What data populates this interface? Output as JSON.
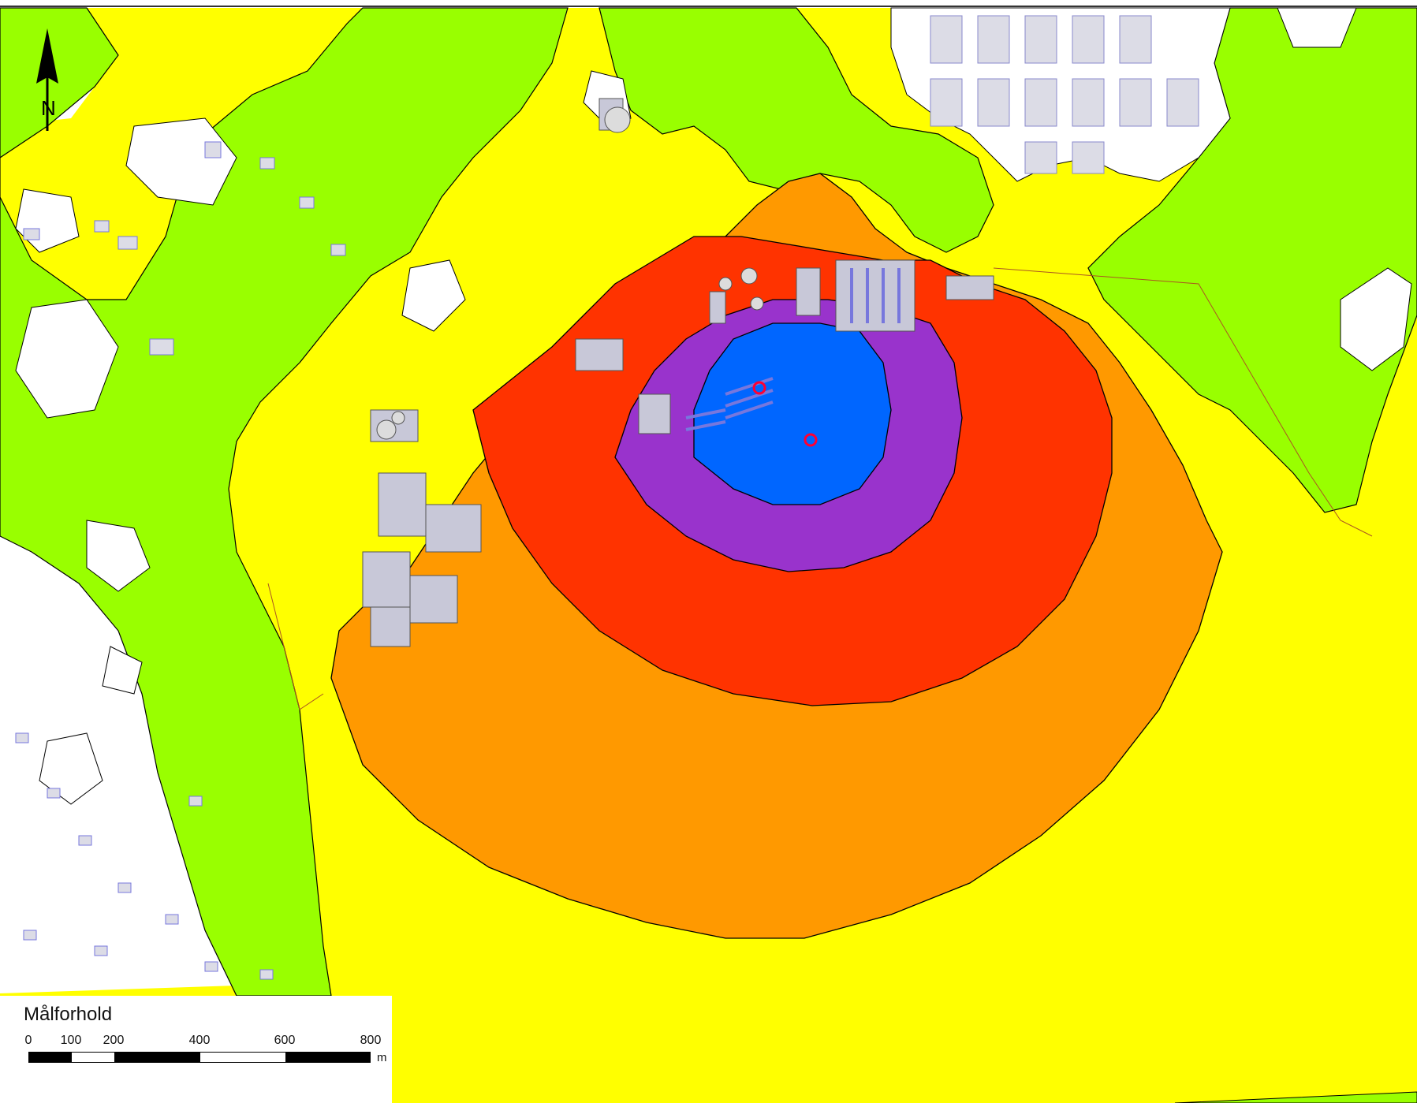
{
  "legend": {
    "title": "Målforhold",
    "ticks": [
      "0",
      "100",
      "200",
      "400",
      "600",
      "800"
    ],
    "unit": "m"
  },
  "north_arrow": {
    "label": "N",
    "icon": "north-arrow-icon"
  },
  "colors": {
    "background": "#ffffff",
    "green": "#99ff00",
    "yellow": "#ffff00",
    "orange": "#ff9900",
    "red": "#ff3300",
    "purple": "#9933cc",
    "blue": "#0066ff",
    "buildings": "#c8c8d8",
    "building_outline": "#7777dd",
    "source_marker": "#ff0033"
  },
  "zones": [
    "green",
    "yellow",
    "orange",
    "red",
    "purple",
    "blue"
  ]
}
